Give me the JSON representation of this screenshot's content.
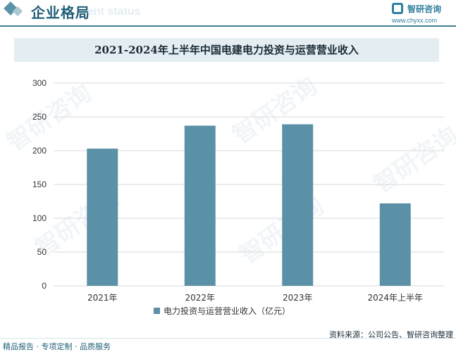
{
  "header": {
    "title": "企业格局",
    "subtitle": "ent status",
    "logo_text": "智研咨询",
    "logo_url": "www.chyxx.com"
  },
  "footer": {
    "left": "精品报告 · 专项定制 · 品质服务",
    "source": "资料来源：公司公告、智研咨询整理"
  },
  "watermark": "智研咨询",
  "colors": {
    "bar": "#5b91a7",
    "header": "#1f5e76",
    "title_band": "#e4eef2"
  },
  "chart_data": {
    "type": "bar",
    "title": "2021-2024年上半年中国电建电力投资与运营营业收入",
    "categories": [
      "2021年",
      "2022年",
      "2023年",
      "2024年上半年"
    ],
    "series": [
      {
        "name": "电力投资与运营营业收入（亿元）",
        "values": [
          203,
          237,
          239,
          122
        ]
      }
    ],
    "ylim": [
      0,
      300
    ],
    "yticks": [
      0,
      50,
      100,
      150,
      200,
      250,
      300
    ],
    "grid": true,
    "legend": "bottom"
  }
}
